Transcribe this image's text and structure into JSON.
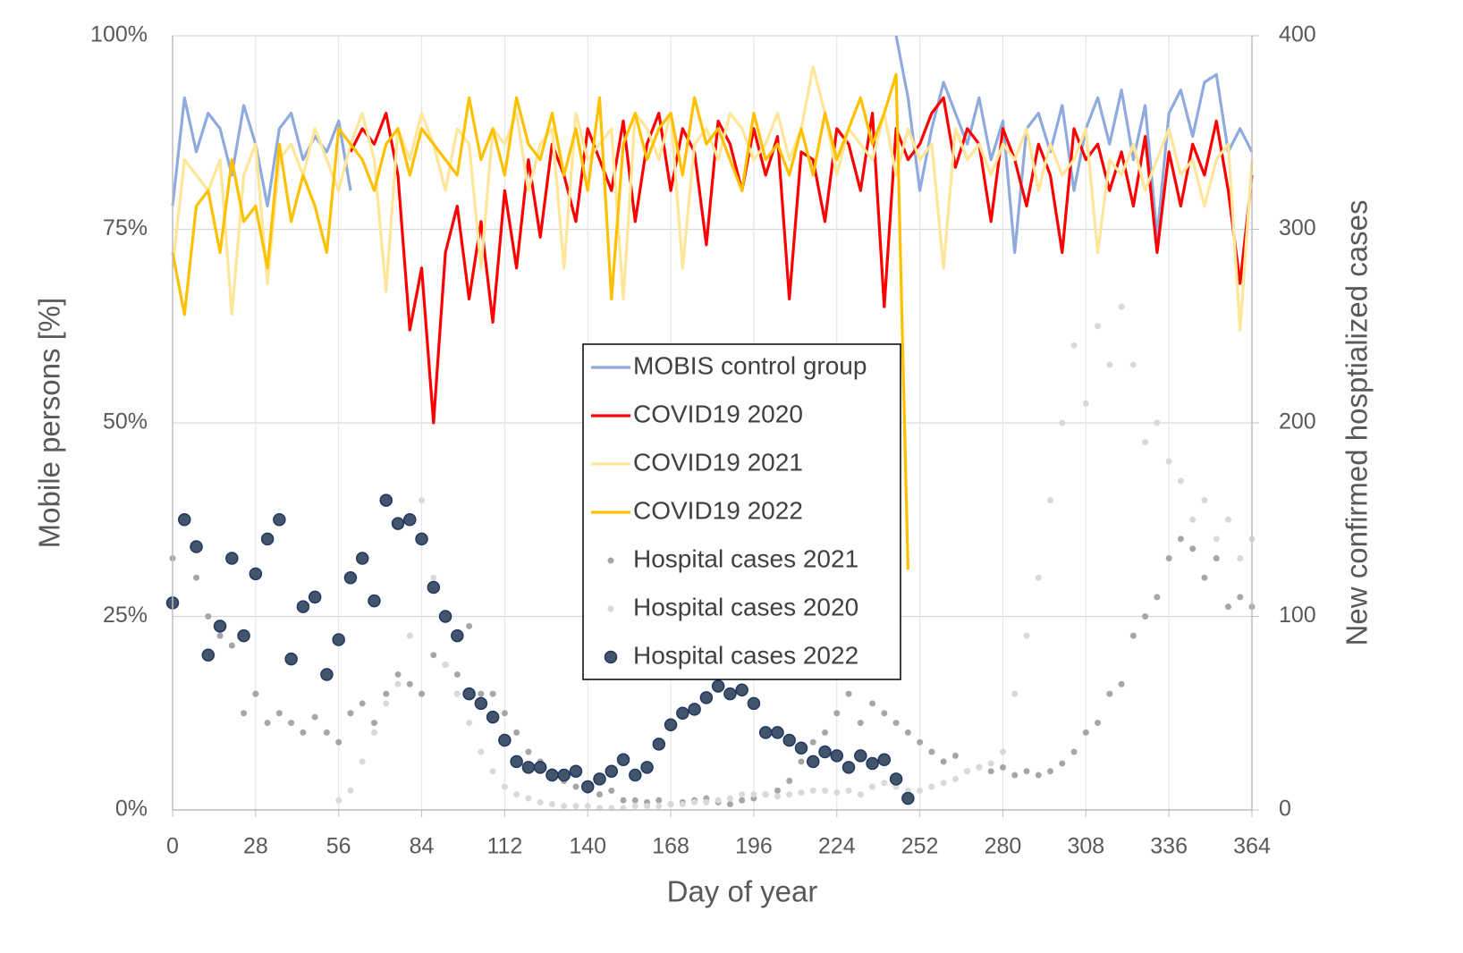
{
  "chart_data": {
    "type": "line",
    "xlabel": "Day of year",
    "ylabel": "Mobile persons [%]",
    "y2label": "New confirmed hosptialized cases",
    "x": [
      0,
      4,
      8,
      12,
      16,
      20,
      24,
      28,
      32,
      36,
      40,
      44,
      48,
      52,
      56,
      60,
      64,
      68,
      72,
      76,
      80,
      84,
      88,
      92,
      96,
      100,
      104,
      108,
      112,
      116,
      120,
      124,
      128,
      132,
      136,
      140,
      144,
      148,
      152,
      156,
      160,
      164,
      168,
      172,
      176,
      180,
      184,
      188,
      192,
      196,
      200,
      204,
      208,
      212,
      216,
      220,
      224,
      228,
      232,
      236,
      240,
      244,
      248,
      252,
      256,
      260,
      264,
      268,
      272,
      276,
      280,
      284,
      288,
      292,
      296,
      300,
      304,
      308,
      312,
      316,
      320,
      324,
      328,
      332,
      336,
      340,
      344,
      348,
      352,
      356,
      360,
      364
    ],
    "xlim": [
      0,
      364
    ],
    "xticks": [
      0,
      28,
      56,
      84,
      112,
      140,
      168,
      196,
      224,
      252,
      280,
      308,
      336,
      364
    ],
    "ylim": [
      0,
      100
    ],
    "yticks": [
      {
        "value": 0,
        "label": "0%"
      },
      {
        "value": 25,
        "label": "25%"
      },
      {
        "value": 50,
        "label": "50%"
      },
      {
        "value": 75,
        "label": "75%"
      },
      {
        "value": 100,
        "label": "100%"
      }
    ],
    "y2lim": [
      0,
      400
    ],
    "y2ticks": [
      0,
      100,
      200,
      300,
      400
    ],
    "grid": true,
    "legend": "center",
    "series": [
      {
        "name": "MOBIS control group",
        "type": "line",
        "color": "#8faadc",
        "values": [
          78,
          92,
          85,
          90,
          88,
          82,
          91,
          86,
          78,
          88,
          90,
          84,
          87,
          85,
          89,
          80,
          null,
          null,
          null,
          null,
          null,
          null,
          null,
          null,
          null,
          null,
          null,
          null,
          null,
          null,
          null,
          null,
          null,
          null,
          null,
          null,
          null,
          null,
          null,
          null,
          null,
          null,
          null,
          null,
          null,
          null,
          null,
          null,
          null,
          null,
          null,
          null,
          null,
          null,
          null,
          null,
          null,
          null,
          null,
          null,
          null,
          100,
          92,
          80,
          88,
          94,
          90,
          86,
          92,
          84,
          89,
          72,
          88,
          90,
          85,
          91,
          80,
          88,
          92,
          86,
          93,
          84,
          91,
          74,
          90,
          93,
          87,
          94,
          95,
          85,
          88,
          85
        ]
      },
      {
        "name": "COVID19 2020",
        "type": "line",
        "color": "#ff0000",
        "values": [
          null,
          null,
          null,
          null,
          null,
          null,
          null,
          null,
          null,
          null,
          null,
          null,
          null,
          null,
          null,
          85,
          88,
          86,
          90,
          82,
          62,
          70,
          50,
          72,
          78,
          66,
          76,
          63,
          80,
          70,
          84,
          74,
          86,
          82,
          76,
          88,
          84,
          80,
          89,
          76,
          86,
          90,
          80,
          88,
          85,
          73,
          89,
          86,
          80,
          88,
          82,
          87,
          66,
          85,
          84,
          76,
          88,
          86,
          80,
          90,
          65,
          88,
          84,
          86,
          90,
          92,
          83,
          88,
          86,
          76,
          88,
          84,
          78,
          86,
          82,
          72,
          88,
          84,
          86,
          80,
          85,
          78,
          87,
          72,
          85,
          78,
          86,
          82,
          89,
          80,
          68,
          82
        ]
      },
      {
        "name": "COVID19 2021",
        "type": "line",
        "color": "#ffe699",
        "values": [
          70,
          84,
          82,
          80,
          84,
          64,
          82,
          86,
          68,
          84,
          86,
          82,
          88,
          84,
          80,
          86,
          90,
          84,
          67,
          88,
          84,
          90,
          86,
          80,
          88,
          86,
          70,
          88,
          86,
          90,
          80,
          86,
          88,
          70,
          90,
          84,
          86,
          88,
          66,
          90,
          88,
          84,
          90,
          70,
          86,
          88,
          84,
          90,
          88,
          84,
          86,
          90,
          84,
          88,
          96,
          90,
          82,
          88,
          86,
          84,
          90,
          82,
          88,
          84,
          86,
          70,
          88,
          84,
          86,
          82,
          86,
          84,
          88,
          80,
          86,
          82,
          84,
          88,
          72,
          84,
          82,
          86,
          80,
          84,
          88,
          82,
          84,
          78,
          84,
          86,
          62,
          84
        ]
      },
      {
        "name": "COVID19 2022",
        "type": "line",
        "color": "#ffc000",
        "values": [
          72,
          64,
          78,
          80,
          72,
          84,
          76,
          78,
          70,
          86,
          76,
          82,
          78,
          72,
          88,
          86,
          84,
          80,
          86,
          88,
          82,
          88,
          86,
          84,
          82,
          92,
          84,
          88,
          82,
          92,
          86,
          84,
          90,
          82,
          88,
          80,
          92,
          66,
          86,
          90,
          84,
          88,
          90,
          82,
          92,
          86,
          88,
          84,
          80,
          90,
          84,
          86,
          82,
          88,
          82,
          90,
          84,
          88,
          92,
          86,
          90,
          95,
          31,
          null,
          null,
          null,
          null,
          null,
          null,
          null,
          null,
          null,
          null,
          null,
          null,
          null,
          null,
          null,
          null,
          null,
          null,
          null,
          null,
          null,
          null,
          null,
          null,
          null,
          null,
          null,
          null,
          null
        ]
      },
      {
        "name": "Hospital cases 2021",
        "type": "scatter",
        "axis": "y2",
        "color": "#a6a6a6",
        "values": [
          130,
          150,
          120,
          100,
          90,
          85,
          50,
          60,
          45,
          50,
          45,
          40,
          48,
          40,
          35,
          50,
          55,
          45,
          60,
          70,
          65,
          60,
          80,
          75,
          70,
          95,
          60,
          60,
          50,
          40,
          30,
          25,
          20,
          15,
          12,
          10,
          8,
          10,
          5,
          5,
          4,
          5,
          3,
          4,
          5,
          6,
          4,
          3,
          5,
          6,
          8,
          10,
          15,
          25,
          35,
          40,
          50,
          60,
          45,
          55,
          50,
          45,
          40,
          35,
          30,
          25,
          28,
          20,
          22,
          20,
          22,
          18,
          20,
          18,
          20,
          24,
          30,
          40,
          45,
          60,
          65,
          90,
          100,
          110,
          130,
          140,
          135,
          120,
          130,
          105,
          110,
          105
        ]
      },
      {
        "name": "Hospital cases 2020",
        "type": "scatter",
        "axis": "y2",
        "color": "#d9d9d9",
        "values": [
          null,
          null,
          null,
          null,
          null,
          null,
          null,
          null,
          null,
          null,
          null,
          null,
          null,
          null,
          5,
          10,
          25,
          40,
          55,
          65,
          90,
          160,
          120,
          75,
          60,
          45,
          30,
          20,
          12,
          8,
          6,
          4,
          3,
          2,
          2,
          2,
          1,
          1,
          1,
          2,
          2,
          2,
          3,
          3,
          4,
          4,
          5,
          6,
          8,
          8,
          8,
          7,
          8,
          9,
          10,
          10,
          9,
          10,
          8,
          12,
          14,
          12,
          10,
          10,
          12,
          14,
          16,
          20,
          22,
          24,
          30,
          60,
          90,
          120,
          160,
          200,
          240,
          210,
          250,
          230,
          260,
          230,
          190,
          200,
          180,
          170,
          150,
          160,
          140,
          150,
          130,
          140
        ]
      },
      {
        "name": "Hospital cases 2022",
        "type": "scatter",
        "axis": "y2",
        "color": "#44546a",
        "values": [
          107,
          150,
          136,
          80,
          95,
          130,
          90,
          122,
          140,
          150,
          78,
          105,
          110,
          70,
          88,
          120,
          130,
          108,
          160,
          148,
          150,
          140,
          115,
          100,
          90,
          60,
          55,
          48,
          36,
          25,
          22,
          22,
          18,
          18,
          20,
          12,
          16,
          20,
          26,
          18,
          22,
          34,
          44,
          50,
          52,
          58,
          64,
          60,
          62,
          55,
          40,
          40,
          36,
          32,
          25,
          30,
          28,
          22,
          28,
          24,
          26,
          16,
          6,
          null,
          null,
          null,
          null,
          null,
          null,
          null,
          null,
          null,
          null,
          null,
          null,
          null,
          null,
          null,
          null,
          null,
          null,
          null,
          null,
          null,
          null,
          null,
          null,
          null,
          null,
          null,
          null,
          null
        ]
      }
    ]
  }
}
